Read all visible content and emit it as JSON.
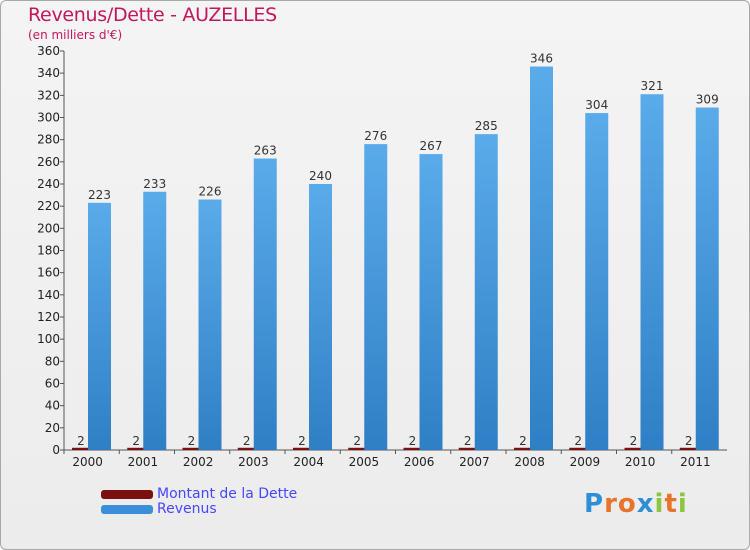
{
  "header": {
    "title": "Revenus/Dette - AUZELLES",
    "subtitle": "(en milliers d'€)"
  },
  "chart_data": {
    "type": "bar",
    "title": "Revenus/Dette - AUZELLES",
    "ylabel": "(en milliers d'€)",
    "xlabel": "",
    "categories": [
      "2000",
      "2001",
      "2002",
      "2003",
      "2004",
      "2005",
      "2006",
      "2007",
      "2008",
      "2009",
      "2010",
      "2011"
    ],
    "series": [
      {
        "name": "Montant de la Dette",
        "color": "#7a1010",
        "values": [
          2,
          2,
          2,
          2,
          2,
          2,
          2,
          2,
          2,
          2,
          2,
          2
        ]
      },
      {
        "name": "Revenus",
        "color": "#3a8fd8",
        "values": [
          223,
          233,
          226,
          263,
          240,
          276,
          267,
          285,
          346,
          304,
          321,
          309
        ]
      }
    ],
    "ylim": [
      0,
      360
    ],
    "yticks": [
      0,
      20,
      40,
      60,
      80,
      100,
      120,
      140,
      160,
      180,
      200,
      220,
      240,
      260,
      280,
      300,
      320,
      340,
      360
    ],
    "grid": false,
    "legend_position": "bottom-left"
  },
  "legend": {
    "items": [
      {
        "label": "Montant de la Dette",
        "color": "#7a1010"
      },
      {
        "label": "Revenus",
        "color": "#3a8fd8"
      }
    ]
  },
  "logo": {
    "letters": [
      "P",
      "r",
      "o",
      "x",
      "i",
      "t",
      "i"
    ]
  }
}
